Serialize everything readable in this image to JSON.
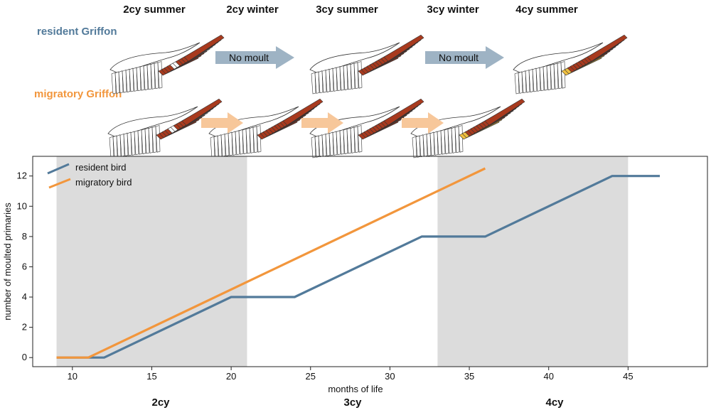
{
  "colors": {
    "resident": "#527a9a",
    "migratory": "#f2963c",
    "shade": "#dcdcdc",
    "arrow_gray": "#9eb3c4",
    "arrow_light_orange": "#f7c79a",
    "moulted_feather": "#a83a1e",
    "new_feather": "#f0c040"
  },
  "diagram": {
    "seasons": [
      "2cy summer",
      "2cy winter",
      "3cy summer",
      "3cy winter",
      "4cy summer"
    ],
    "resident_label": "resident Griffon",
    "migratory_label": "migratory Griffon",
    "no_moult": "No moult"
  },
  "chart_data": {
    "type": "line",
    "xlabel": "months of life",
    "ylabel": "number of moulted primaries",
    "xlim": [
      7.5,
      50
    ],
    "ylim": [
      -0.6,
      13.3
    ],
    "xticks": [
      10,
      15,
      20,
      25,
      30,
      35,
      40,
      45
    ],
    "yticks": [
      0,
      2,
      4,
      6,
      8,
      10,
      12
    ],
    "shaded_ranges": [
      [
        9,
        21
      ],
      [
        33,
        45
      ]
    ],
    "cycle_labels": [
      {
        "label": "2cy",
        "x": 15
      },
      {
        "label": "3cy",
        "x": 27
      },
      {
        "label": "4cy",
        "x": 39
      }
    ],
    "legend_position": "top-left",
    "series": [
      {
        "name": "resident bird",
        "color": "#527a9a",
        "x": [
          9,
          12,
          20,
          24,
          32,
          36,
          44,
          47
        ],
        "y": [
          0,
          0,
          4,
          4,
          8,
          8,
          12,
          12
        ]
      },
      {
        "name": "migratory bird",
        "color": "#f2963c",
        "x": [
          9,
          11,
          36
        ],
        "y": [
          0,
          0,
          12.5
        ]
      }
    ]
  }
}
